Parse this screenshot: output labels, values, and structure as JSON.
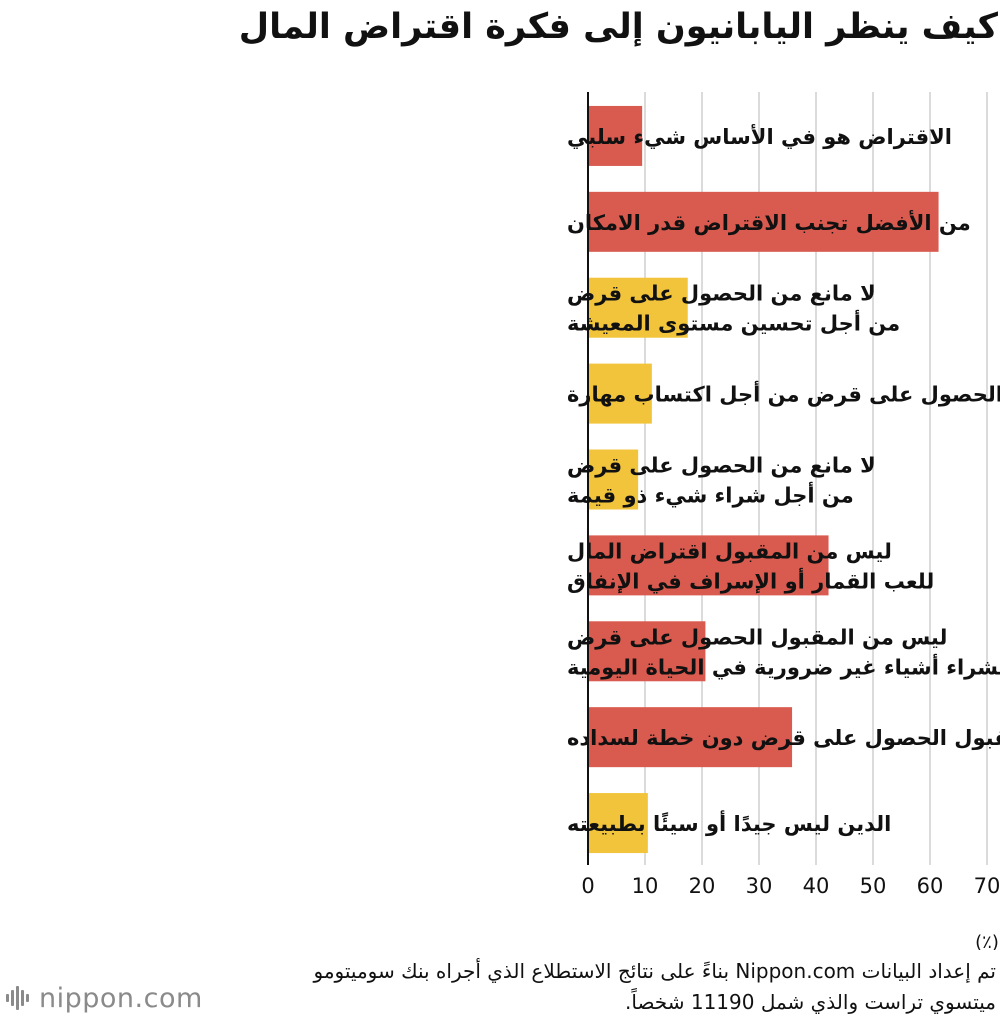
{
  "colors": {
    "red": "#d95b4f",
    "yellow": "#f1c43c",
    "grid": "#cfcfcf",
    "axis": "#111111",
    "text": "#111111",
    "logo": "#8a8a8a"
  },
  "source_note": "تم إعداد البيانات Nippon.com بناءً على نتائج الاستطلاع الذي أجراه  بنك سوميتومو ميتسوي تراست والذي شمل 11190 شخصاً.",
  "logo": {
    "text": "nippon.com",
    "icon": "soundwave-icon"
  },
  "chart_data": {
    "type": "bar",
    "orientation": "horizontal",
    "title": "كيف ينظر اليابانيون إلى فكرة اقتراض المال",
    "unit_label": "(٪)",
    "xlim": [
      0,
      70
    ],
    "xticks": [
      0,
      10,
      20,
      30,
      40,
      50,
      60,
      70
    ],
    "grid": true,
    "categories": [
      {
        "lines": [
          "الاقتراض هو في الأساس شيء سلبي"
        ],
        "value": 9.5,
        "color": "red"
      },
      {
        "lines": [
          "من الأفضل تجنب الاقتراض قدر الامكان"
        ],
        "value": 61.5,
        "color": "red"
      },
      {
        "lines": [
          "لا مانع من الحصول على قرض",
          "من أجل تحسين مستوى المعيشة"
        ],
        "value": 17.5,
        "color": "yellow"
      },
      {
        "lines": [
          "لا مانع من الحصول على قرض من أجل اكتساب مهارة"
        ],
        "value": 11.2,
        "color": "yellow"
      },
      {
        "lines": [
          "لا مانع من الحصول على قرض",
          "من أجل شراء شيء ذو قيمة"
        ],
        "value": 8.8,
        "color": "yellow"
      },
      {
        "lines": [
          "ليس من المقبول اقتراض المال",
          "للعب القمار أو الإسراف في الإنفاق"
        ],
        "value": 42.2,
        "color": "red"
      },
      {
        "lines": [
          "ليس من المقبول الحصول على قرض",
          "لشراء أشياء غير ضرورية في الحياة اليومية"
        ],
        "value": 20.6,
        "color": "red"
      },
      {
        "lines": [
          "ليس من المقبول الحصول على قرض دون خطة لسداده"
        ],
        "value": 35.8,
        "color": "red"
      },
      {
        "lines": [
          "الدين ليس جيدًا أو سيئًا بطبيعته"
        ],
        "value": 10.5,
        "color": "yellow"
      }
    ]
  }
}
